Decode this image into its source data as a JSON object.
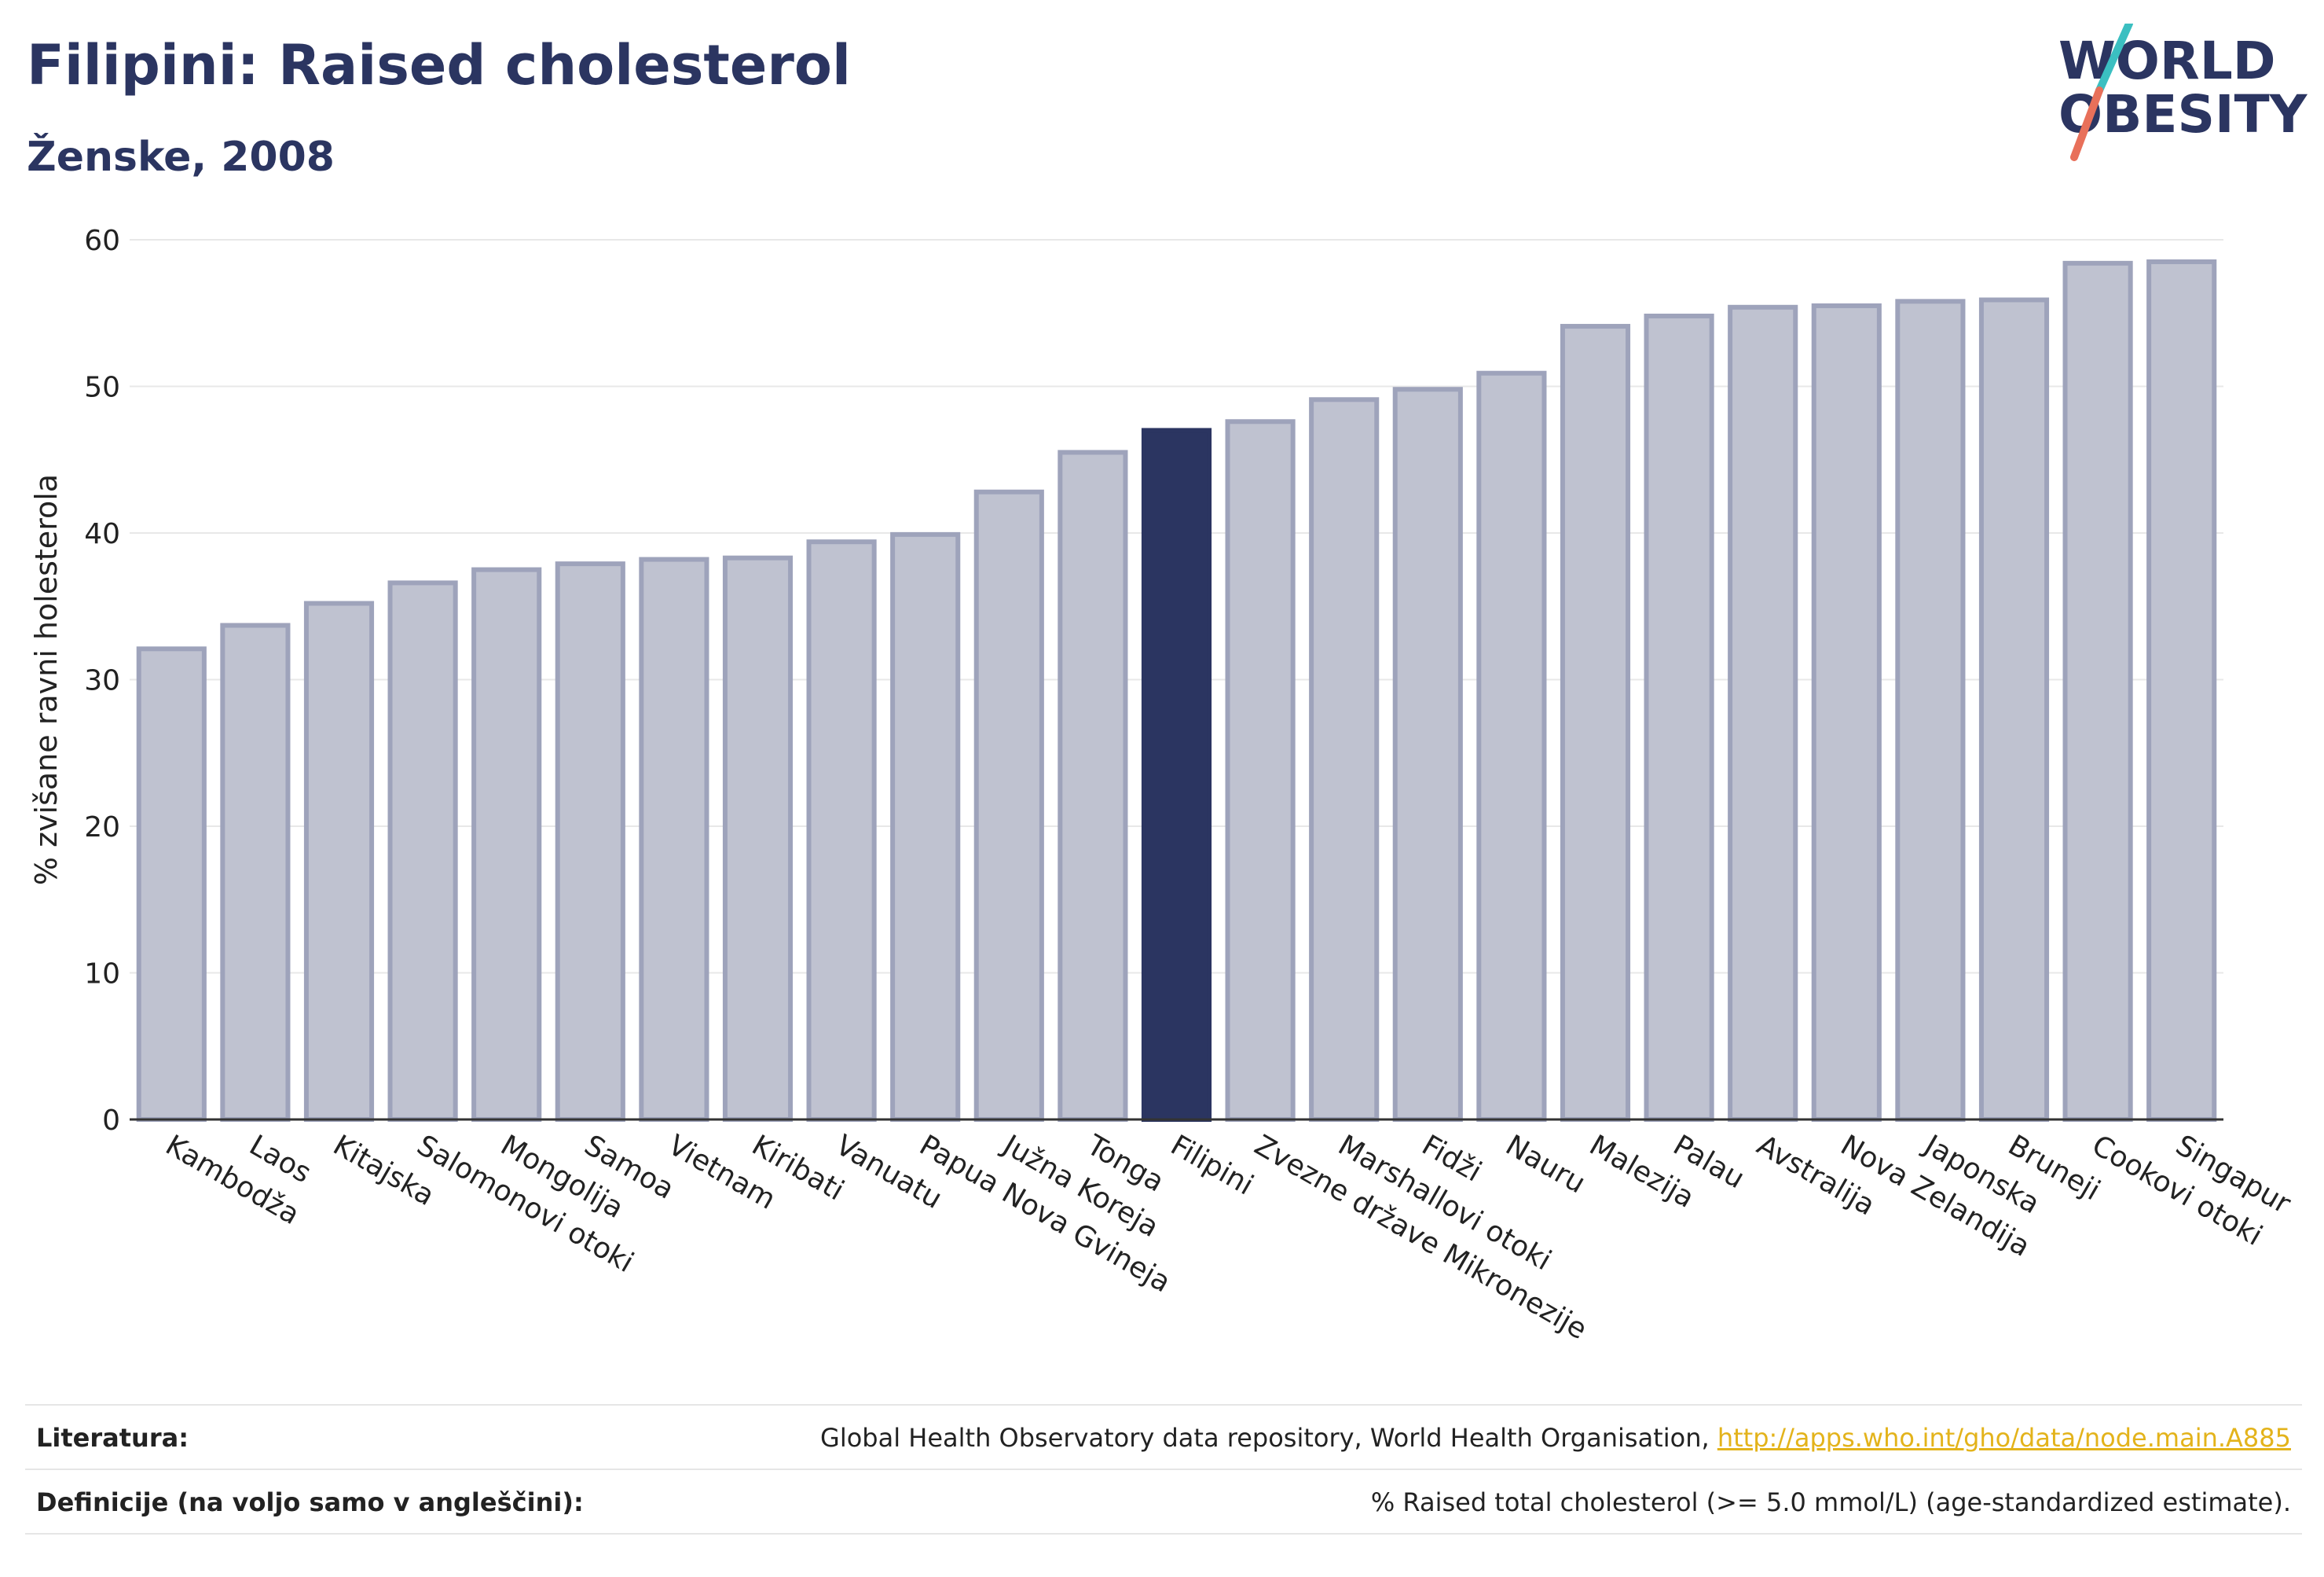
{
  "header": {
    "title": "Filipini: Raised cholesterol",
    "subtitle": "Ženske, 2008"
  },
  "logo": {
    "line1": "WORLD",
    "line2": "OBESITY",
    "text_color": "#2b3561",
    "slash_top_color": "#3bbfc1",
    "slash_bottom_color": "#e8705a"
  },
  "chart_data": {
    "type": "bar",
    "ylabel": "% zvišane ravni holesterola",
    "xlabel": "",
    "ylim": [
      0,
      60
    ],
    "yticks": [
      0,
      10,
      20,
      30,
      40,
      50,
      60
    ],
    "grid": true,
    "highlight": "Filipini",
    "bar_color": "#bfc2d0",
    "bar_edge_color": "#9ea3bb",
    "highlight_color": "#2b3561",
    "categories": [
      "Kambodža",
      "Laos",
      "Kitajska",
      "Salomonovi otoki",
      "Mongolija",
      "Samoa",
      "Vietnam",
      "Kiribati",
      "Vanuatu",
      "Papua Nova Gvineja",
      "Južna Koreja",
      "Tonga",
      "Filipini",
      "Zvezne države Mikronezije",
      "Marshallovi otoki",
      "Fidži",
      "Nauru",
      "Malezija",
      "Palau",
      "Avstralija",
      "Nova Zelandija",
      "Japonska",
      "Bruneji",
      "Cookovi otoki",
      "Singapur"
    ],
    "values": [
      32.1,
      33.7,
      35.2,
      36.6,
      37.5,
      37.9,
      38.2,
      38.3,
      39.4,
      39.9,
      42.8,
      45.5,
      47.0,
      47.6,
      49.1,
      49.8,
      50.9,
      54.1,
      54.8,
      55.4,
      55.5,
      55.8,
      55.9,
      58.4,
      58.5
    ]
  },
  "footer": {
    "sources_label": "Literatura:",
    "sources_text": "Global Health Observatory data repository, World Health Organisation, ",
    "sources_link": "http://apps.who.int/gho/data/node.main.A885",
    "definition_label": "Definicije (na voljo samo v angleščini):",
    "definition_text": "% Raised total cholesterol (>= 5.0 mmol/L) (age-standardized estimate)."
  }
}
